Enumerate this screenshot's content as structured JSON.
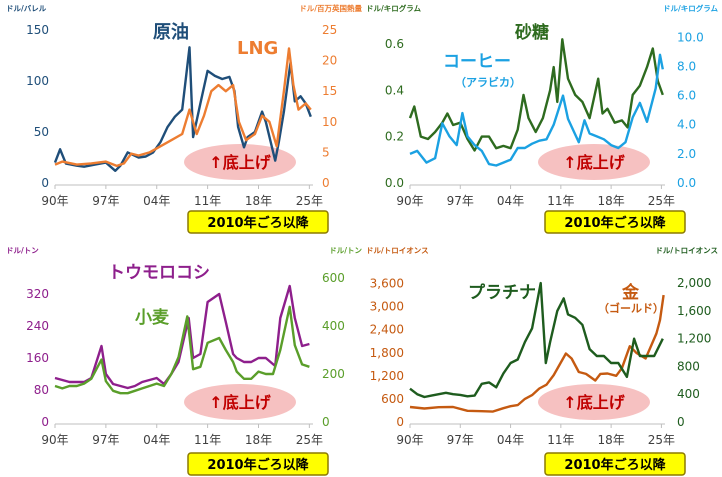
{
  "chart_data": [
    {
      "type": "line",
      "y_left_unit": "ドル/バレル",
      "y_right_unit": "ドル/百万英国熱量",
      "x_ticks": [
        "90年",
        "97年",
        "04年",
        "11年",
        "18年",
        "25年"
      ],
      "x_range": [
        1990,
        2025.5
      ],
      "y_left_ticks": [
        "0",
        "50",
        "100",
        "150"
      ],
      "y_left_range": [
        0,
        150
      ],
      "y_right_ticks": [
        "0",
        "5",
        "10",
        "15",
        "20",
        "25"
      ],
      "y_right_range": [
        0,
        25
      ],
      "series": [
        {
          "name": "原油",
          "axis": "left",
          "color": "#1f4e79",
          "x": [
            1990,
            1990.7,
            1991.5,
            1993,
            1994,
            1995.5,
            1997,
            1998.3,
            1999,
            2000,
            2001.5,
            2002.5,
            2003.5,
            2004.5,
            2005.5,
            2006.5,
            2007.5,
            2008.5,
            2009,
            2010,
            2011,
            2012,
            2013,
            2014,
            2014.7,
            2015.2,
            2016,
            2016.5,
            2017.5,
            2018.5,
            2019,
            2020.3,
            2020.8,
            2021.5,
            2022.4,
            2023,
            2023.8,
            2024.5,
            2025.2
          ],
          "y": [
            20,
            33,
            19,
            17,
            16,
            18,
            20,
            12,
            17,
            30,
            25,
            26,
            30,
            40,
            55,
            65,
            72,
            133,
            45,
            78,
            110,
            105,
            102,
            104,
            90,
            55,
            35,
            45,
            50,
            70,
            60,
            22,
            40,
            70,
            118,
            80,
            85,
            78,
            65
          ]
        },
        {
          "name": "LNG",
          "axis": "right",
          "color": "#ed7d31",
          "x": [
            1990,
            1991,
            1993,
            1995,
            1997,
            1998.5,
            1999.5,
            2000.5,
            2001.5,
            2003,
            2004.5,
            2006,
            2007.5,
            2008.5,
            2009.5,
            2010.5,
            2011.5,
            2012.5,
            2013.5,
            2014.5,
            2015.3,
            2016.3,
            2017.5,
            2018.5,
            2019.5,
            2020.5,
            2021.5,
            2022.2,
            2022.8,
            2023.5,
            2024.5,
            2025.2
          ],
          "y": [
            3,
            3.5,
            3,
            3.2,
            3.5,
            2.8,
            3.2,
            4.8,
            4.5,
            5,
            6,
            7,
            8,
            12,
            8,
            11,
            15,
            16,
            15,
            16,
            10,
            7,
            8,
            11,
            10,
            6,
            15,
            22,
            16,
            12,
            13,
            12
          ]
        }
      ],
      "title_labels": [
        {
          "text": "原油",
          "color": "#1f4e79"
        },
        {
          "text": "LNG",
          "color": "#ed7d31"
        }
      ],
      "annotation": "↑底上げ",
      "period_label": "2010年ごろ以降"
    },
    {
      "type": "line",
      "y_left_unit": "ドル/キログラム",
      "y_right_unit": "ドル/キログラム",
      "x_ticks": [
        "90年",
        "97年",
        "04年",
        "11年",
        "18年",
        "25年"
      ],
      "x_range": [
        1990,
        2025.5
      ],
      "y_left_ticks": [
        "0.0",
        "0.2",
        "0.4",
        "0.6"
      ],
      "y_left_range": [
        0,
        0.66
      ],
      "y_right_ticks": [
        "0.0",
        "2.0",
        "4.0",
        "6.0",
        "8.0",
        "10.0"
      ],
      "y_right_range": [
        0,
        10.5
      ],
      "series": [
        {
          "name": "砂糖",
          "axis": "left",
          "color": "#2e6b1f",
          "x": [
            1990,
            1990.6,
            1991.5,
            1992.5,
            1993.5,
            1994.5,
            1995.2,
            1996,
            1997,
            1998,
            1999,
            2000,
            2001,
            2002,
            2003,
            2004,
            2005,
            2005.8,
            2006.5,
            2007.5,
            2008.5,
            2009.5,
            2010,
            2010.5,
            2011.2,
            2012,
            2013,
            2014,
            2015,
            2016.2,
            2016.8,
            2017.5,
            2018.5,
            2019.5,
            2020.3,
            2021,
            2022,
            2023,
            2023.8,
            2024.5,
            2025.2
          ],
          "y": [
            0.28,
            0.33,
            0.2,
            0.19,
            0.22,
            0.26,
            0.3,
            0.25,
            0.26,
            0.19,
            0.14,
            0.2,
            0.2,
            0.15,
            0.16,
            0.15,
            0.23,
            0.38,
            0.28,
            0.22,
            0.28,
            0.4,
            0.5,
            0.35,
            0.62,
            0.45,
            0.38,
            0.35,
            0.28,
            0.45,
            0.3,
            0.32,
            0.26,
            0.27,
            0.24,
            0.38,
            0.42,
            0.5,
            0.58,
            0.44,
            0.38
          ]
        },
        {
          "name": "コーヒー",
          "axis": "right",
          "color": "#1ba1e2",
          "x": [
            1990,
            1991,
            1992.3,
            1993.5,
            1994.5,
            1995.5,
            1996.5,
            1997.3,
            1998,
            1999,
            2000,
            2001,
            2002,
            2003,
            2004,
            2005,
            2006,
            2007,
            2008,
            2009,
            2010,
            2011.3,
            2012,
            2013.5,
            2014.3,
            2015,
            2016,
            2017,
            2018,
            2019,
            2020,
            2021,
            2022,
            2023,
            2024.2,
            2024.8,
            2025.2
          ],
          "y": [
            2,
            2.2,
            1.4,
            1.7,
            4.1,
            3.2,
            2.6,
            4.8,
            3.2,
            2.6,
            2.2,
            1.3,
            1.2,
            1.4,
            1.6,
            2.4,
            2.4,
            2.7,
            2.9,
            3.0,
            4.0,
            6.0,
            4.4,
            2.8,
            4.3,
            3.4,
            3.2,
            3.0,
            2.6,
            2.4,
            2.8,
            4.5,
            5.5,
            4.2,
            6.5,
            8.8,
            7.8
          ]
        }
      ],
      "title_labels": [
        {
          "text": "砂糖",
          "color": "#2e6b1f"
        },
        {
          "text": "コーヒー",
          "color": "#1ba1e2"
        },
        {
          "text": "（アラビカ）",
          "color": "#1ba1e2"
        }
      ],
      "annotation": "↑底上げ",
      "period_label": "2010年ごろ以降"
    },
    {
      "type": "line",
      "y_left_unit": "ドル/トン",
      "y_right_unit": "ドル/トン",
      "x_ticks": [
        "90年",
        "97年",
        "04年",
        "11年",
        "18年",
        "25年"
      ],
      "x_range": [
        1990,
        2025.5
      ],
      "y_left_ticks": [
        "0",
        "80",
        "160",
        "240",
        "320"
      ],
      "y_left_range": [
        0,
        360
      ],
      "y_right_ticks": [
        "0",
        "200",
        "400",
        "600"
      ],
      "y_right_range": [
        0,
        600
      ],
      "series": [
        {
          "name": "トウモロコシ",
          "axis": "left",
          "color": "#8e1f8c",
          "x": [
            1990,
            1991,
            1992,
            1993,
            1994,
            1995,
            1996.4,
            1997,
            1998,
            1999,
            2000,
            2001,
            2002,
            2003,
            2004,
            2005,
            2006,
            2007,
            2008.4,
            2009,
            2010,
            2011,
            2012.6,
            2013.5,
            2014.5,
            2015,
            2016,
            2017,
            2018,
            2019,
            2020.3,
            2021,
            2022.3,
            2023,
            2024,
            2025
          ],
          "y": [
            110,
            105,
            100,
            100,
            100,
            110,
            190,
            120,
            95,
            90,
            85,
            90,
            100,
            105,
            110,
            95,
            120,
            150,
            260,
            160,
            170,
            300,
            320,
            250,
            170,
            160,
            150,
            150,
            160,
            160,
            140,
            260,
            340,
            260,
            190,
            195
          ]
        },
        {
          "name": "小麦",
          "axis": "right",
          "color": "#5a9e2a",
          "x": [
            1990,
            1991,
            1992,
            1993,
            1994,
            1995,
            1996.4,
            1997,
            1998,
            1999,
            2000,
            2001,
            2002,
            2003,
            2004,
            2005,
            2006,
            2007,
            2008.2,
            2009,
            2010,
            2011,
            2012.6,
            2013.5,
            2014.5,
            2015,
            2016,
            2017,
            2018,
            2019,
            2020,
            2021,
            2022.3,
            2023,
            2024,
            2025
          ],
          "y": [
            150,
            140,
            150,
            150,
            160,
            180,
            260,
            170,
            130,
            120,
            120,
            130,
            140,
            150,
            160,
            150,
            200,
            270,
            440,
            220,
            230,
            330,
            350,
            300,
            250,
            210,
            180,
            180,
            210,
            200,
            200,
            300,
            480,
            320,
            240,
            230
          ]
        }
      ],
      "title_labels": [
        {
          "text": "トウモロコシ",
          "color": "#8e1f8c"
        },
        {
          "text": "小麦",
          "color": "#5a9e2a"
        }
      ],
      "annotation": "↑底上げ",
      "period_label": "2010年ごろ以降"
    },
    {
      "type": "line",
      "y_left_unit": "ドル/トロイオンス",
      "y_right_unit": "ドル/トロイオンス",
      "x_ticks": [
        "90年",
        "97年",
        "04年",
        "11年",
        "18年",
        "25年"
      ],
      "x_range": [
        1990,
        2025.5
      ],
      "y_left_ticks": [
        "0",
        "600",
        "1,200",
        "1,800",
        "2,400",
        "3,000",
        "3,600"
      ],
      "y_left_range": [
        0,
        3900
      ],
      "y_right_ticks": [
        "0",
        "400",
        "800",
        "1,200",
        "1,600",
        "2,000"
      ],
      "y_right_range": [
        0,
        2160
      ],
      "series": [
        {
          "name": "金",
          "axis": "left",
          "color": "#c55a11",
          "x": [
            1990,
            1992,
            1994,
            1996,
            1998,
            2000,
            2001.5,
            2003,
            2004,
            2005,
            2006,
            2007,
            2008,
            2009,
            2010,
            2011.7,
            2012.5,
            2013.5,
            2014.5,
            2015.8,
            2016.5,
            2017.5,
            2018.7,
            2019.5,
            2020.6,
            2021.5,
            2022.8,
            2023.5,
            2024.3,
            2024.8,
            2025.3
          ],
          "y": [
            390,
            350,
            385,
            390,
            290,
            280,
            270,
            360,
            410,
            440,
            600,
            700,
            870,
            970,
            1220,
            1780,
            1650,
            1300,
            1250,
            1080,
            1250,
            1260,
            1200,
            1400,
            1970,
            1800,
            1650,
            1950,
            2300,
            2650,
            3300
          ]
        },
        {
          "name": "プラチナ",
          "axis": "right",
          "color": "#1e5c1e",
          "x": [
            1990,
            1991,
            1992,
            1993,
            1994,
            1995,
            1996,
            1997,
            1998,
            1999,
            2000,
            2001,
            2002,
            2003,
            2004,
            2005,
            2006,
            2007,
            2008.2,
            2008.9,
            2009.5,
            2010.5,
            2011.4,
            2012,
            2013,
            2014,
            2015,
            2016,
            2017,
            2018,
            2019,
            2020.2,
            2021.2,
            2022,
            2023,
            2024,
            2025.2
          ],
          "y": [
            480,
            400,
            360,
            380,
            400,
            420,
            400,
            390,
            370,
            380,
            550,
            570,
            500,
            700,
            850,
            900,
            1150,
            1350,
            2000,
            850,
            1150,
            1600,
            1780,
            1550,
            1500,
            1400,
            1050,
            950,
            950,
            850,
            850,
            650,
            1200,
            950,
            950,
            950,
            1200
          ]
        }
      ],
      "title_labels": [
        {
          "text": "プラチナ",
          "color": "#1e5c1e"
        },
        {
          "text": "金",
          "color": "#c55a11"
        },
        {
          "text": "（ゴールド）",
          "color": "#c55a11"
        }
      ],
      "annotation": "↑底上げ",
      "period_label": "2010年ごろ以降"
    }
  ]
}
